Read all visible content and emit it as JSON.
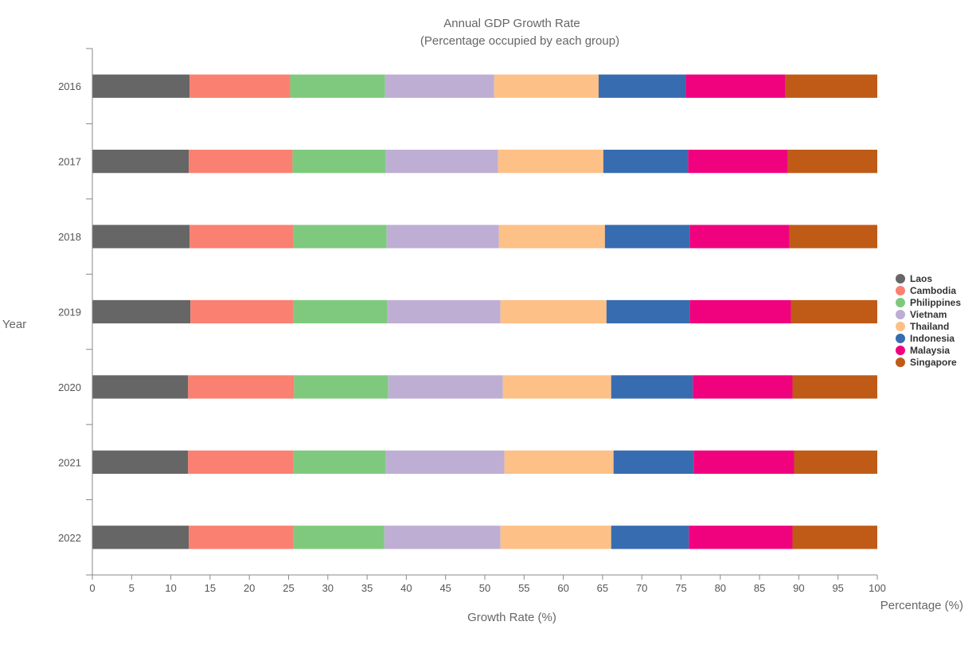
{
  "chart_data": {
    "type": "bar",
    "orientation": "horizontal",
    "stacked": true,
    "normalized": "percent",
    "title": "Annual GDP Growth Rate",
    "subtitle": "(Percentage occupied by each group)",
    "xlabel": "Growth Rate (%)",
    "xlabel_secondary": "Percentage (%)",
    "ylabel": "Year",
    "xlim": [
      0,
      100
    ],
    "x_ticks": [
      0,
      5,
      10,
      15,
      20,
      25,
      30,
      35,
      40,
      45,
      50,
      55,
      60,
      65,
      70,
      75,
      80,
      85,
      90,
      95,
      100
    ],
    "categories": [
      "2016",
      "2017",
      "2018",
      "2019",
      "2020",
      "2021",
      "2022"
    ],
    "grid": false,
    "legend_position": "right",
    "series": [
      {
        "name": "Laos",
        "color": "#666666",
        "values": [
          12.4,
          12.3,
          12.4,
          12.5,
          12.2,
          12.2,
          12.3
        ]
      },
      {
        "name": "Cambodia",
        "color": "#fa8072",
        "values": [
          12.8,
          13.2,
          13.2,
          13.1,
          13.5,
          13.4,
          13.3
        ]
      },
      {
        "name": "Philippines",
        "color": "#7fc97f",
        "values": [
          12.1,
          11.9,
          11.9,
          12.0,
          12.0,
          11.8,
          11.6
        ]
      },
      {
        "name": "Vietnam",
        "color": "#beaed4",
        "values": [
          13.9,
          14.3,
          14.3,
          14.4,
          14.6,
          15.1,
          14.8
        ]
      },
      {
        "name": "Thailand",
        "color": "#fdc086",
        "values": [
          13.3,
          13.4,
          13.5,
          13.5,
          13.8,
          13.9,
          14.1
        ]
      },
      {
        "name": "Indonesia",
        "color": "#386cb0",
        "values": [
          11.1,
          10.8,
          10.8,
          10.6,
          10.4,
          10.2,
          9.9
        ]
      },
      {
        "name": "Malaysia",
        "color": "#f0027f",
        "values": [
          12.7,
          12.7,
          12.7,
          12.9,
          12.7,
          12.8,
          13.2
        ]
      },
      {
        "name": "Singapore",
        "color": "#bf5b17",
        "values": [
          11.7,
          11.4,
          11.2,
          11.0,
          10.8,
          10.6,
          10.8
        ]
      }
    ]
  }
}
